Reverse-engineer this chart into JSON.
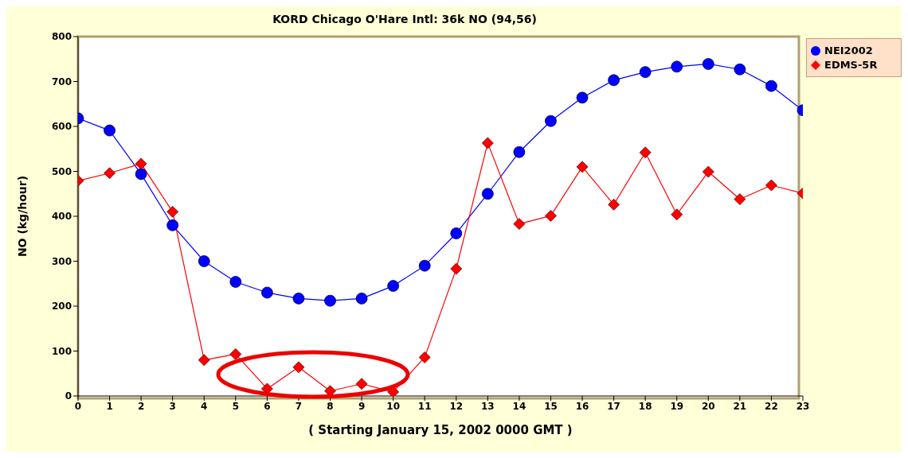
{
  "chart_data": {
    "type": "line",
    "title": "KORD Chicago O'Hare Intl: 36k NO (94,56)",
    "xlabel": "( Starting January 15, 2002 0000 GMT )",
    "ylabel": "NO (kg/hour)",
    "x": [
      0,
      1,
      2,
      3,
      4,
      5,
      6,
      7,
      8,
      9,
      10,
      11,
      12,
      13,
      14,
      15,
      16,
      17,
      18,
      19,
      20,
      21,
      22,
      23
    ],
    "series": [
      {
        "name": "NEI2002",
        "color": "#0000ff",
        "marker": "circle",
        "values": [
          618,
          591,
          494,
          380,
          300,
          254,
          230,
          217,
          212,
          217,
          245,
          290,
          362,
          450,
          543,
          612,
          664,
          703,
          721,
          733,
          739,
          727,
          690,
          636
        ]
      },
      {
        "name": "EDMS-5R",
        "color": "#ff0000",
        "marker": "diamond",
        "values": [
          479,
          496,
          517,
          410,
          80,
          93,
          16,
          64,
          11,
          27,
          9,
          86,
          283,
          563,
          383,
          401,
          510,
          426,
          542,
          404,
          499,
          438,
          469,
          451
        ]
      }
    ],
    "xlim": [
      0,
      23
    ],
    "xticks": [
      0,
      1,
      2,
      3,
      4,
      5,
      6,
      7,
      8,
      9,
      10,
      11,
      12,
      13,
      14,
      15,
      16,
      17,
      18,
      19,
      20,
      21,
      22,
      23
    ],
    "ylim": [
      0,
      800
    ],
    "yticks": [
      0,
      100,
      200,
      300,
      400,
      500,
      600,
      700,
      800
    ],
    "grid": false,
    "legend": "top right",
    "line_style": "solid"
  }
}
